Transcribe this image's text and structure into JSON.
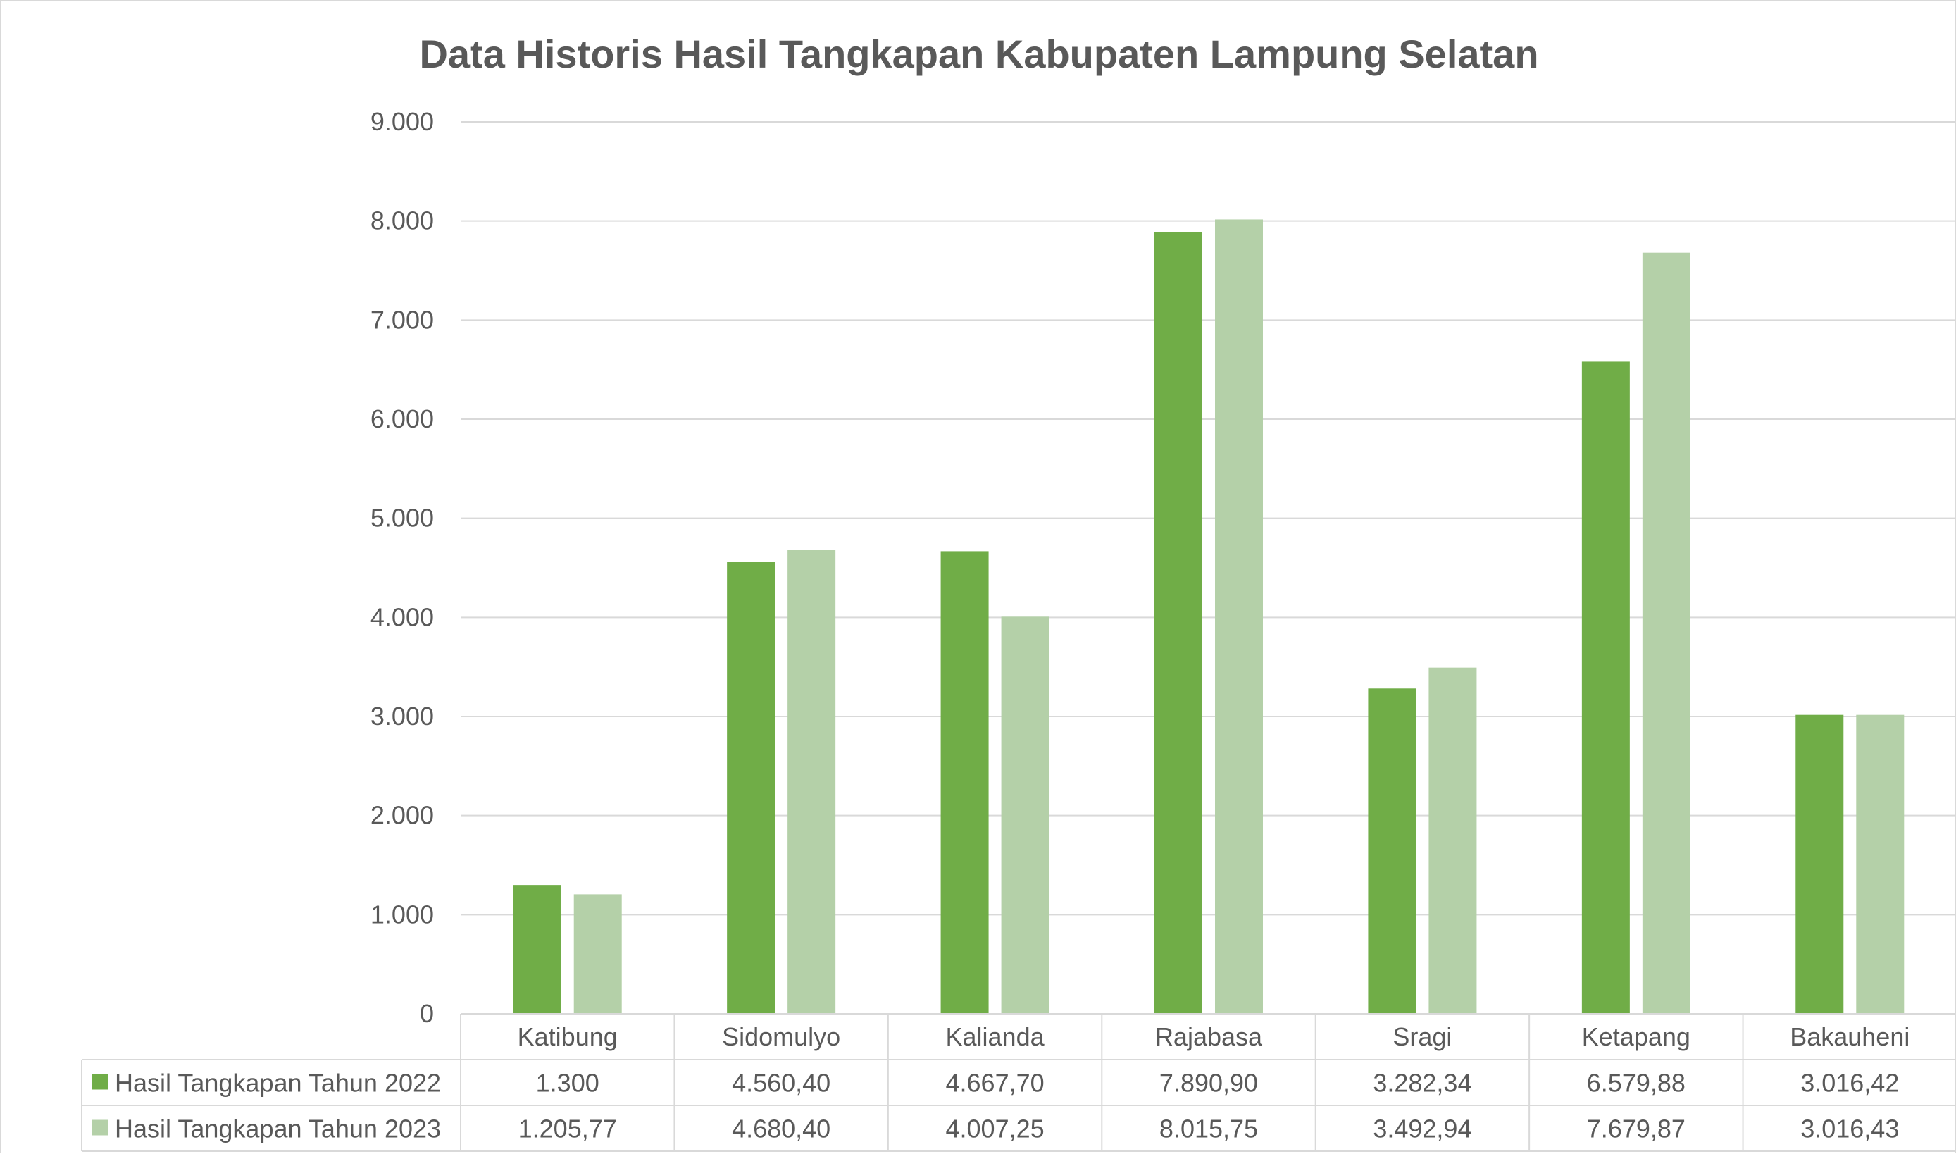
{
  "chart_data": {
    "type": "bar",
    "title": "Data Historis Hasil Tangkapan Kabupaten Lampung Selatan",
    "xlabel": "",
    "ylabel": "",
    "categories": [
      "Katibung",
      "Sidomulyo",
      "Kalianda",
      "Rajabasa",
      "Sragi",
      "Ketapang",
      "Bakauheni"
    ],
    "series": [
      {
        "name": "Hasil Tangkapan Tahun 2022",
        "color": "#70ad47",
        "values": [
          1300,
          4560.4,
          4667.7,
          7890.9,
          3282.34,
          6579.88,
          3016.42
        ],
        "labels": [
          "1.300",
          "4.560,40",
          "4.667,70",
          "7.890,90",
          "3.282,34",
          "6.579,88",
          "3.016,42"
        ]
      },
      {
        "name": "Hasil Tangkapan Tahun 2023",
        "color": "#b4d0a8",
        "values": [
          1205.77,
          4680.4,
          4007.25,
          8015.75,
          3492.94,
          7679.87,
          3016.43
        ],
        "labels": [
          "1.205,77",
          "4.680,40",
          "4.007,25",
          "8.015,75",
          "3.492,94",
          "7.679,87",
          "3.016,43"
        ]
      }
    ],
    "ylim": [
      0,
      9000
    ],
    "yticks": [
      0,
      1000,
      2000,
      3000,
      4000,
      5000,
      6000,
      7000,
      8000,
      9000
    ],
    "ytick_labels": [
      "0",
      "1.000",
      "2.000",
      "3.000",
      "4.000",
      "5.000",
      "6.000",
      "7.000",
      "8.000",
      "9.000"
    ],
    "grid": true,
    "legend": "data-table"
  }
}
